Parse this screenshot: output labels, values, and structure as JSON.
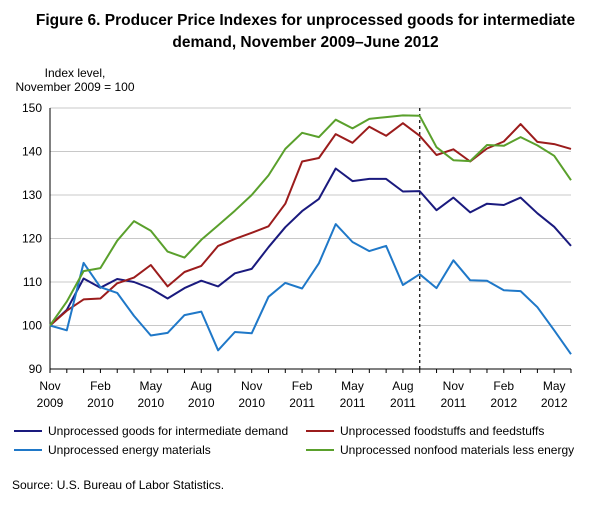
{
  "title_line1": "Figure 6. Producer Price Indexes for unprocessed  goods for intermediate",
  "title_line2": "demand, November 2009–June 2012",
  "ylabel_line1": "Index level,",
  "ylabel_line2": "November 2009 = 100",
  "source": "Source:  U.S. Bureau  of Labor Statistics.",
  "chart_data": {
    "type": "line",
    "ylim": [
      90,
      150
    ],
    "yticks": [
      90,
      100,
      110,
      120,
      130,
      140,
      150
    ],
    "x_tick_labels": [
      {
        "index": 0,
        "month": "Nov",
        "year": "2009"
      },
      {
        "index": 3,
        "month": "Feb",
        "year": "2010"
      },
      {
        "index": 6,
        "month": "May",
        "year": "2010"
      },
      {
        "index": 9,
        "month": "Aug",
        "year": "2010"
      },
      {
        "index": 12,
        "month": "Nov",
        "year": "2010"
      },
      {
        "index": 15,
        "month": "Feb",
        "year": "2011"
      },
      {
        "index": 18,
        "month": "May",
        "year": "2011"
      },
      {
        "index": 21,
        "month": "Aug",
        "year": "2011"
      },
      {
        "index": 24,
        "month": "Nov",
        "year": "2011"
      },
      {
        "index": 27,
        "month": "Feb",
        "year": "2012"
      },
      {
        "index": 30,
        "month": "May",
        "year": "2012"
      }
    ],
    "x_dates": [
      "2009-11",
      "2009-12",
      "2010-01",
      "2010-02",
      "2010-03",
      "2010-04",
      "2010-05",
      "2010-06",
      "2010-07",
      "2010-08",
      "2010-09",
      "2010-10",
      "2010-11",
      "2010-12",
      "2011-01",
      "2011-02",
      "2011-03",
      "2011-04",
      "2011-05",
      "2011-06",
      "2011-07",
      "2011-08",
      "2011-09",
      "2011-10",
      "2011-11",
      "2011-12",
      "2012-01",
      "2012-02",
      "2012-03",
      "2012-04",
      "2012-05",
      "2012-06"
    ],
    "vertical_marker_date": "2011-09",
    "grid": "horizontal",
    "series": [
      {
        "name": "Unprocessed goods for intermediate demand",
        "color": "#1a1a7e",
        "values": [
          100,
          103.6,
          110.8,
          108.7,
          110.7,
          110.0,
          108.5,
          106.2,
          108.6,
          110.3,
          109.0,
          112.0,
          113.0,
          118.0,
          122.6,
          126.3,
          129.1,
          136.1,
          133.2,
          133.7,
          133.7,
          130.8,
          130.9,
          126.5,
          129.4,
          126.0,
          128.0,
          127.7,
          129.4,
          125.8,
          122.7,
          118.3
        ]
      },
      {
        "name": "Unprocessed foodstuffs and feedstuffs",
        "color": "#9b1c1c",
        "values": [
          100,
          103.4,
          106.0,
          106.2,
          109.7,
          111.0,
          113.9,
          109.0,
          112.3,
          113.7,
          118.3,
          119.9,
          121.3,
          122.8,
          128.0,
          137.7,
          138.5,
          144.0,
          142.0,
          145.7,
          143.6,
          146.5,
          143.6,
          139.2,
          140.5,
          137.7,
          140.7,
          142.3,
          146.3,
          142.2,
          141.7,
          140.6
        ]
      },
      {
        "name": "Unprocessed energy materials",
        "color": "#1f78c8",
        "values": [
          100,
          98.9,
          114.4,
          108.8,
          107.5,
          102.2,
          97.7,
          98.3,
          102.4,
          103.2,
          94.3,
          98.5,
          98.2,
          106.6,
          109.8,
          108.5,
          114.3,
          123.3,
          119.2,
          117.1,
          118.3,
          109.3,
          111.8,
          108.6,
          115.0,
          110.4,
          110.3,
          108.1,
          107.9,
          104.2,
          98.9,
          93.4
        ]
      },
      {
        "name": "Unprocessed nonfood materials less energy",
        "color": "#5aa02c",
        "values": [
          100,
          105.5,
          112.5,
          113.2,
          119.5,
          124.0,
          121.8,
          117.0,
          115.6,
          119.7,
          123.0,
          126.4,
          130.0,
          134.5,
          140.6,
          144.3,
          143.3,
          147.3,
          145.3,
          147.5,
          147.9,
          148.3,
          148.2,
          141.0,
          138.0,
          137.8,
          141.5,
          141.3,
          143.3,
          141.4,
          139.0,
          133.4
        ]
      }
    ]
  }
}
